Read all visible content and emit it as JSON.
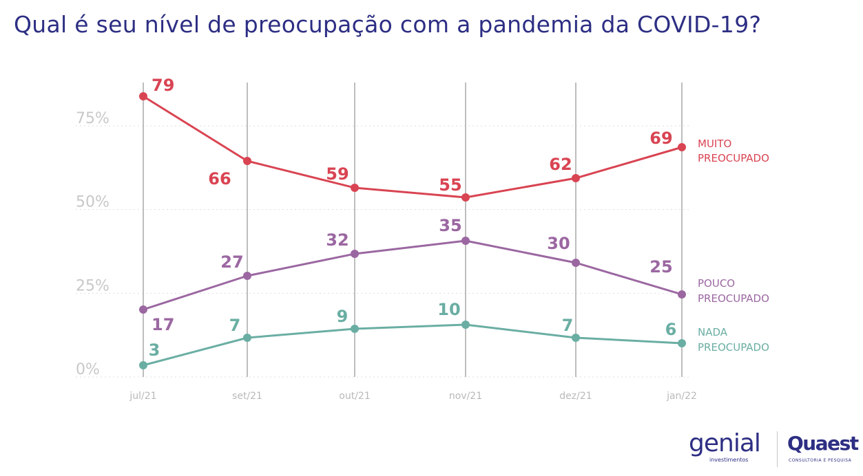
{
  "title": "Qual é seu nível de preocupação com a pandemia da COVID-19?",
  "chart_data": {
    "type": "line",
    "title": "Qual é seu nível de preocupação com a pandemia da COVID-19?",
    "categories": [
      "jul/21",
      "set/21",
      "out/21",
      "nov/21",
      "dez/21",
      "jan/22"
    ],
    "y_ticks": [
      "0%",
      "25%",
      "50%",
      "75%"
    ],
    "ylim": [
      0,
      90
    ],
    "grid": "horizontal dotted + vertical solid",
    "series": [
      {
        "name": "MUITO PREOCUPADO",
        "name_lines": [
          "MUITO",
          "PREOCUPADO"
        ],
        "color": "#d94452",
        "values": [
          79,
          66,
          59,
          55,
          62,
          69
        ],
        "labels": [
          "79",
          "66",
          "59",
          "55",
          "62",
          "69"
        ]
      },
      {
        "name": "POUCO PREOCUPADO",
        "name_lines": [
          "POUCO",
          "PREOCUPADO"
        ],
        "color": "#9b67a1",
        "values": [
          17,
          27,
          32,
          35,
          30,
          25
        ],
        "labels": [
          "17",
          "27",
          "32",
          "35",
          "30",
          "25"
        ]
      },
      {
        "name": "NADA PREOCUPADO",
        "name_lines": [
          "NADA",
          "PREOCUPADO"
        ],
        "color": "#6aaea3",
        "values": [
          3,
          7,
          9,
          10,
          7,
          6
        ],
        "labels": [
          "3",
          "7",
          "9",
          "10",
          "7",
          "6"
        ]
      }
    ]
  },
  "logos": {
    "genial": "genial",
    "genial_sub": "investimentos",
    "quaest": "Quaest",
    "quaest_sub": "CONSULTORIA E PESQUISA"
  }
}
